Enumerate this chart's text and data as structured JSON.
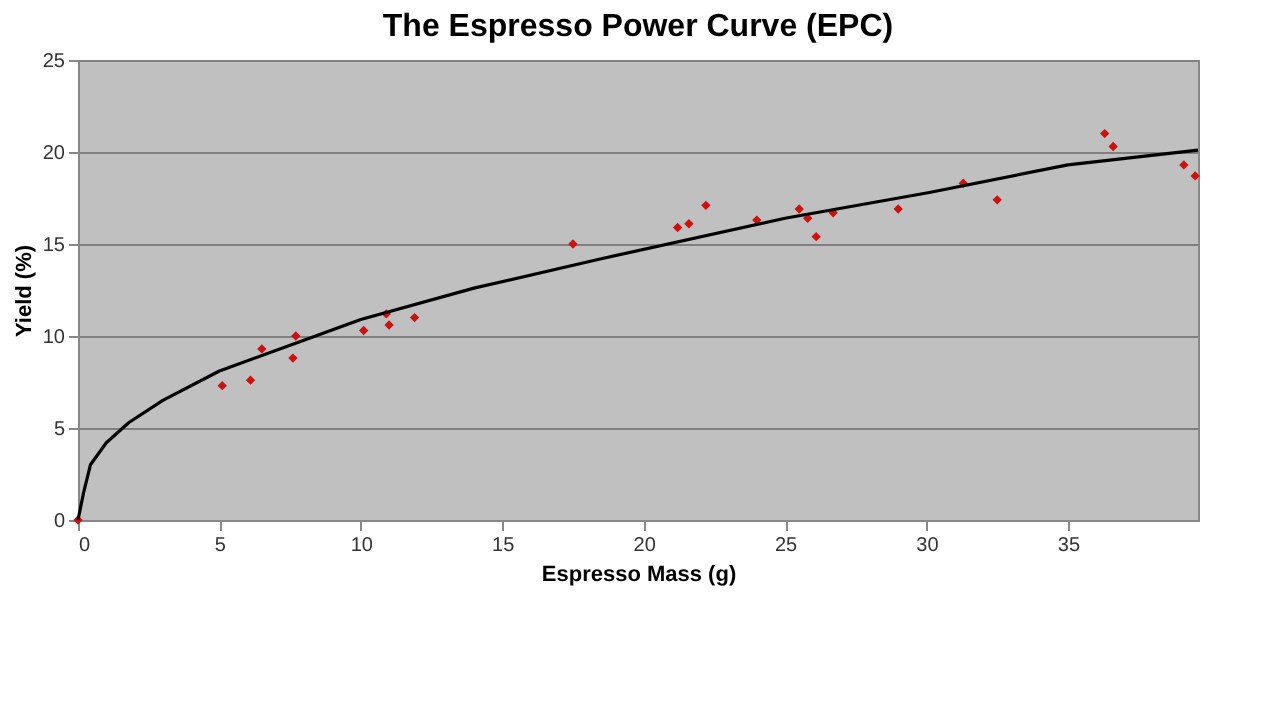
{
  "chart_data": {
    "type": "scatter",
    "title": "The Espresso Power Curve (EPC)",
    "xlabel": "Espresso Mass (g)",
    "ylabel": "Yield (%)",
    "xlim": [
      0,
      39.6
    ],
    "xticks": [
      0,
      5,
      10,
      15,
      20,
      25,
      30,
      35
    ],
    "ylim": [
      0,
      25
    ],
    "yticks": [
      0,
      5,
      10,
      15,
      20,
      25
    ],
    "grid": "y",
    "series": [
      {
        "marker": "diamond",
        "color": "#cc1111",
        "x": [
          0,
          5.1,
          6.1,
          6.5,
          7.7,
          7.6,
          10.1,
          10.9,
          11.0,
          11.9,
          17.5,
          21.2,
          21.6,
          22.2,
          24.0,
          25.5,
          25.8,
          26.1,
          26.7,
          29.0,
          31.3,
          32.5,
          36.3,
          36.6,
          39.1,
          39.5
        ],
        "values": [
          0,
          7.3,
          7.6,
          9.3,
          10.0,
          8.8,
          10.3,
          11.2,
          10.6,
          11.0,
          15.0,
          15.9,
          16.1,
          17.1,
          16.3,
          16.9,
          16.4,
          15.4,
          16.7,
          16.9,
          18.3,
          17.4,
          21.0,
          20.3,
          19.3,
          18.7
        ]
      },
      {
        "type": "line",
        "marker": "none",
        "line_style": "solid",
        "color": "#000000",
        "x": [
          0,
          0.2,
          0.44,
          1.0,
          1.8,
          3.0,
          5.0,
          7.5,
          10.0,
          14.0,
          18.5,
          25.0,
          30.1,
          35.0,
          39.6
        ],
        "values": [
          0,
          1.5,
          3.0,
          4.2,
          5.3,
          6.5,
          8.1,
          9.5,
          10.9,
          12.6,
          14.2,
          16.4,
          17.8,
          19.3,
          20.1
        ]
      }
    ]
  }
}
